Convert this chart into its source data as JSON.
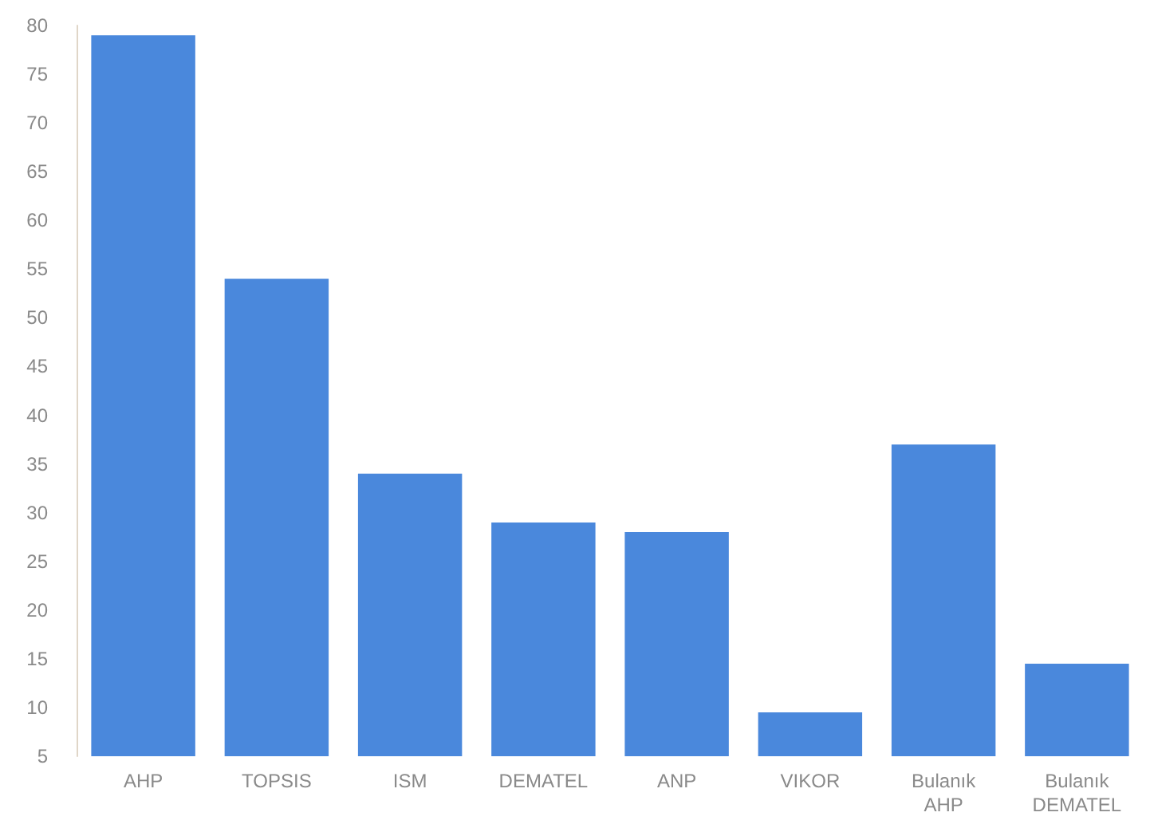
{
  "chart_data": {
    "type": "bar",
    "categories": [
      "AHP",
      "TOPSIS",
      "ISM",
      "DEMATEL",
      "ANP",
      "VIKOR",
      "Bulanık\nAHP",
      "Bulanık\nDEMATEL"
    ],
    "values": [
      79,
      54,
      34,
      29,
      28,
      9.5,
      37,
      14.5
    ],
    "color": "#4a88dc",
    "ylim": [
      5,
      80
    ],
    "yticks": [
      5,
      10,
      15,
      20,
      25,
      30,
      35,
      40,
      45,
      50,
      55,
      60,
      65,
      70,
      75,
      80
    ],
    "grid": false
  }
}
